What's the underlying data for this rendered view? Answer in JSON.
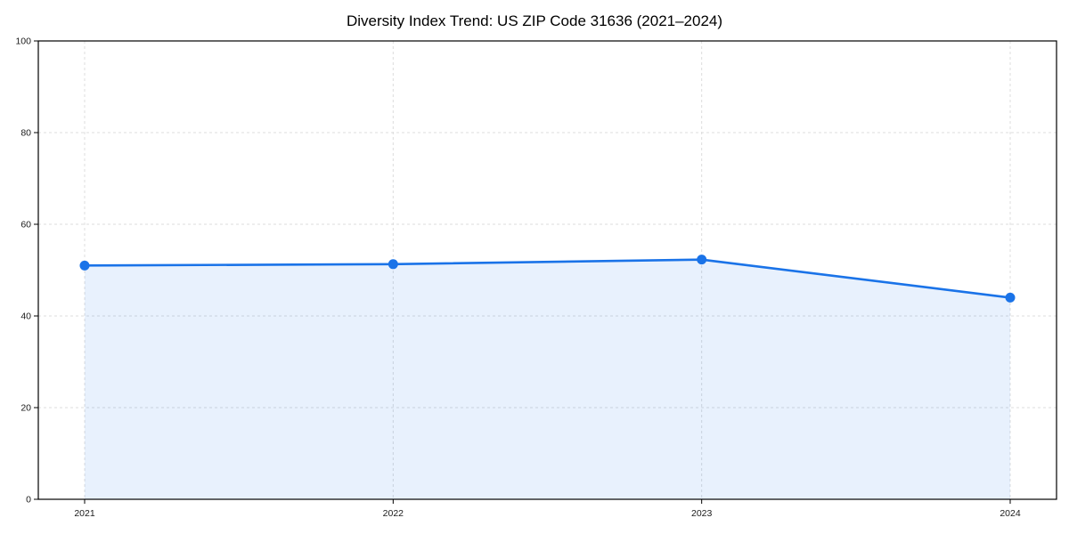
{
  "page": {
    "background": "#ffffff"
  },
  "chart_data": {
    "type": "area",
    "title": "Diversity Index Trend: US ZIP Code 31636 (2021–2024)",
    "categories": [
      "2021",
      "2022",
      "2023",
      "2024"
    ],
    "series": [
      {
        "name": "Diversity Index",
        "values": [
          51,
          51.3,
          52.3,
          44
        ]
      }
    ],
    "xlabel": "",
    "ylabel": "",
    "ylim": [
      0,
      100
    ],
    "yticks": [
      0,
      20,
      40,
      60,
      80,
      100
    ],
    "grid": true,
    "grid_style": "dashed",
    "legend": "none",
    "marker": "circle",
    "line_color": "#1a73e8",
    "fill_color": "#1a73e8",
    "fill_opacity": 0.1,
    "grid_color": "#dcdcdc",
    "axis_color": "#000000",
    "tick_label_color": "#1a1a1a"
  }
}
